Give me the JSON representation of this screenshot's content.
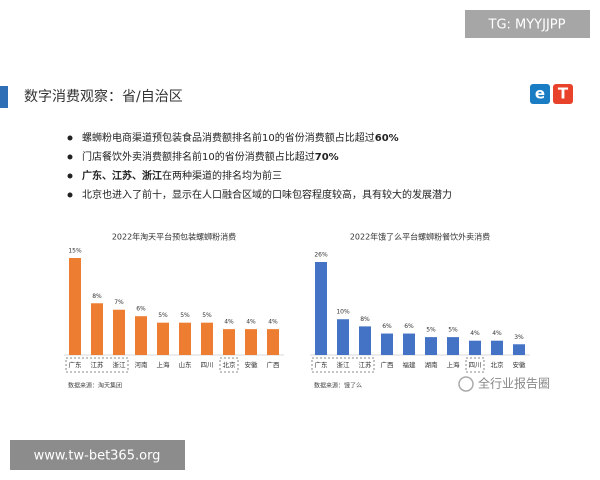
{
  "header": {
    "title": "数字消费观察：省/自治区",
    "logo": [
      "e",
      "T"
    ]
  },
  "bullets": [
    [
      {
        "text": "螺蛳粉电商渠道预包装食品消费额排名前10的省份消费额占比超过",
        "bold": false
      },
      {
        "text": "60%",
        "bold": true
      }
    ],
    [
      {
        "text": "门店餐饮外卖消费额排名前10的省份消费额占比超过",
        "bold": false
      },
      {
        "text": "70%",
        "bold": true
      }
    ],
    [
      {
        "text": "广东、江苏、浙江",
        "bold": true
      },
      {
        "text": "在两种渠道的排名均为前三",
        "bold": false
      }
    ],
    [
      {
        "text": "北京也进入了前十，显示在人口融合区域的口味包容程度较高，具有较大的发展潜力",
        "bold": false
      }
    ]
  ],
  "chart_data": [
    {
      "type": "bar",
      "title": "2022年淘天平台预包装螺蛳粉消费",
      "color": "#ed7d31",
      "categories": [
        "广东",
        "江苏",
        "浙江",
        "河南",
        "上海",
        "山东",
        "四川",
        "北京",
        "安徽",
        "广西"
      ],
      "values": [
        15,
        8,
        7,
        6,
        5,
        5,
        5,
        4,
        4,
        4
      ],
      "value_labels": [
        "15%",
        "8%",
        "7%",
        "6%",
        "5%",
        "5%",
        "5%",
        "4%",
        "4%",
        "4%"
      ],
      "source": "数据来源：淘天集团"
    },
    {
      "type": "bar",
      "title": "2022年饿了么平台螺蛳粉餐饮外卖消费",
      "color": "#4472c4",
      "categories": [
        "广东",
        "浙江",
        "江苏",
        "广西",
        "福建",
        "湖南",
        "上海",
        "四川",
        "北京",
        "安徽"
      ],
      "values": [
        26,
        10,
        8,
        6,
        6,
        5,
        5,
        4,
        4,
        3
      ],
      "value_labels": [
        "26%",
        "10%",
        "8%",
        "6%",
        "6%",
        "5%",
        "5%",
        "4%",
        "4%",
        "3%"
      ],
      "source": "数据来源：饿了么"
    }
  ],
  "watermarks": {
    "top": "TG: MYYJJPP",
    "bottom": "www.tw-bet365.org",
    "brand": "全行业报告圈"
  }
}
